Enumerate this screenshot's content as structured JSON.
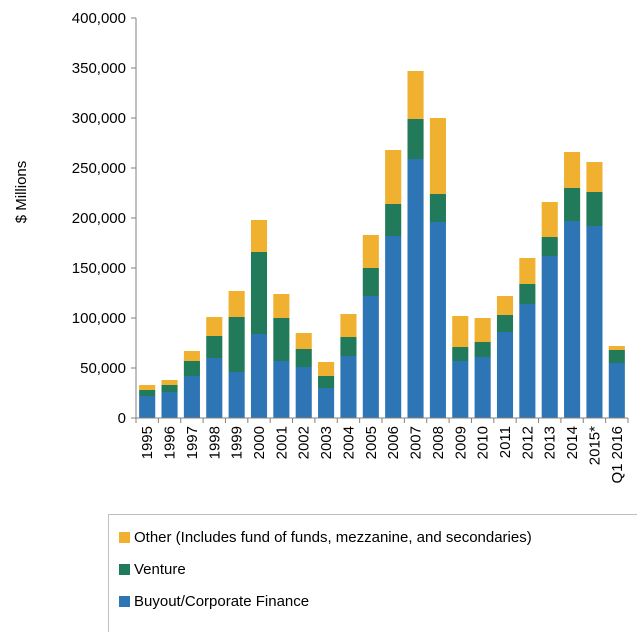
{
  "chart_data": {
    "type": "bar",
    "stacked": true,
    "ylabel": "$ Millions",
    "ylim": [
      0,
      400000
    ],
    "yticks": [
      0,
      50000,
      100000,
      150000,
      200000,
      250000,
      300000,
      350000,
      400000
    ],
    "ytick_labels": [
      "0",
      "50,000",
      "100,000",
      "150,000",
      "200,000",
      "250,000",
      "300,000",
      "350,000",
      "400,000"
    ],
    "categories": [
      "1995",
      "1996",
      "1997",
      "1998",
      "1999",
      "2000",
      "2001",
      "2002",
      "2003",
      "2004",
      "2005",
      "2006",
      "2007",
      "2008",
      "2009",
      "2010",
      "2011",
      "2012",
      "2013",
      "2014",
      "2015*",
      "Q1 2016"
    ],
    "series": [
      {
        "name": "Buyout/Corporate Finance",
        "color": "#2e75b6",
        "values": [
          22000,
          26000,
          42000,
          60000,
          46000,
          84000,
          57000,
          51000,
          30000,
          62000,
          122000,
          182000,
          259000,
          196000,
          57000,
          61000,
          86000,
          114000,
          162000,
          197000,
          192000,
          55000
        ]
      },
      {
        "name": "Venture",
        "color": "#217a5a",
        "values": [
          6000,
          7000,
          15000,
          22000,
          55000,
          82000,
          43000,
          18000,
          12000,
          19000,
          28000,
          32000,
          40000,
          28000,
          14000,
          15000,
          17000,
          20000,
          19000,
          33000,
          34000,
          13000
        ]
      },
      {
        "name": "Other (Includes fund of funds, mezzanine, and secondaries)",
        "color": "#f0b030",
        "values": [
          5000,
          5000,
          10000,
          19000,
          26000,
          32000,
          24000,
          16000,
          14000,
          23000,
          33000,
          54000,
          48000,
          76000,
          31000,
          24000,
          19000,
          26000,
          35000,
          36000,
          30000,
          4000
        ]
      }
    ],
    "legend": {
      "placement": "bottom",
      "order": [
        "Other (Includes fund of funds, mezzanine, and secondaries)",
        "Venture",
        "Buyout/Corporate Finance"
      ]
    },
    "grid": false
  }
}
